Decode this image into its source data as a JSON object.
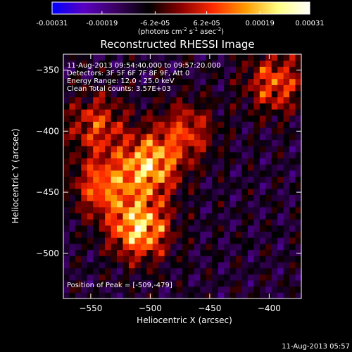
{
  "colorbar": {
    "tick_labels": [
      "-0.00031",
      "-0.00019",
      "-6.2e-05",
      "6.2e-05",
      "0.00019",
      "0.00031"
    ],
    "ticks": [
      -0.00031,
      -0.00019,
      -6.2e-05,
      6.2e-05,
      0.00019,
      0.00031
    ],
    "range": [
      -0.00031,
      0.00031
    ],
    "unit_label": "(photons cm",
    "unit_exp1": "-2",
    "unit_mid": " s",
    "unit_exp2": "-1",
    "unit_end": " asec",
    "unit_exp3": "-2",
    "unit_close": ")",
    "colors": [
      "#0000ff",
      "#5a00c0",
      "#3a0060",
      "#000000",
      "#8a0000",
      "#ff2a00",
      "#ff9a00",
      "#ffff80",
      "#ffffff"
    ]
  },
  "chart_data": {
    "type": "heatmap",
    "title": "Reconstructed RHESSI Image",
    "xlabel": "Heliocentric X (arcsec)",
    "ylabel": "Heliocentric Y (arcsec)",
    "xlim": [
      -573,
      -373
    ],
    "ylim": [
      -537,
      -337
    ],
    "x_ticks": [
      -550,
      -500,
      -450,
      -400
    ],
    "y_ticks": [
      -350,
      -400,
      -450,
      -500
    ],
    "x_tick_labels": [
      "−550",
      "−500",
      "−450",
      "−400"
    ],
    "y_tick_labels": [
      "−350",
      "−400",
      "−450",
      "−500"
    ],
    "annotations": [
      "11-Aug-2013 09:54:40.000 to 09:57:20.000",
      "Detectors: 3F 5F 6F 7F 8F 9F, Att 0",
      "Energy Range: 12.0 - 25.0 keV",
      "Clean     Total counts: 3.57E+03"
    ],
    "peak_label": "Position of Peak = [-509,-479]",
    "peak": [
      -509,
      -479
    ],
    "sources": [
      {
        "x": -509,
        "y": -479,
        "peak": 0.00031
      },
      {
        "x": -501,
        "y": -428,
        "peak": 0.00028
      },
      {
        "x": -540,
        "y": -445,
        "peak": 0.00017
      },
      {
        "x": -395,
        "y": -360,
        "peak": 0.00015
      },
      {
        "x": -545,
        "y": -395,
        "peak": 0.00012
      },
      {
        "x": -470,
        "y": -400,
        "peak": 0.00011
      }
    ]
  },
  "footer": {
    "timestamp": "11-Aug-2013 05:57"
  }
}
